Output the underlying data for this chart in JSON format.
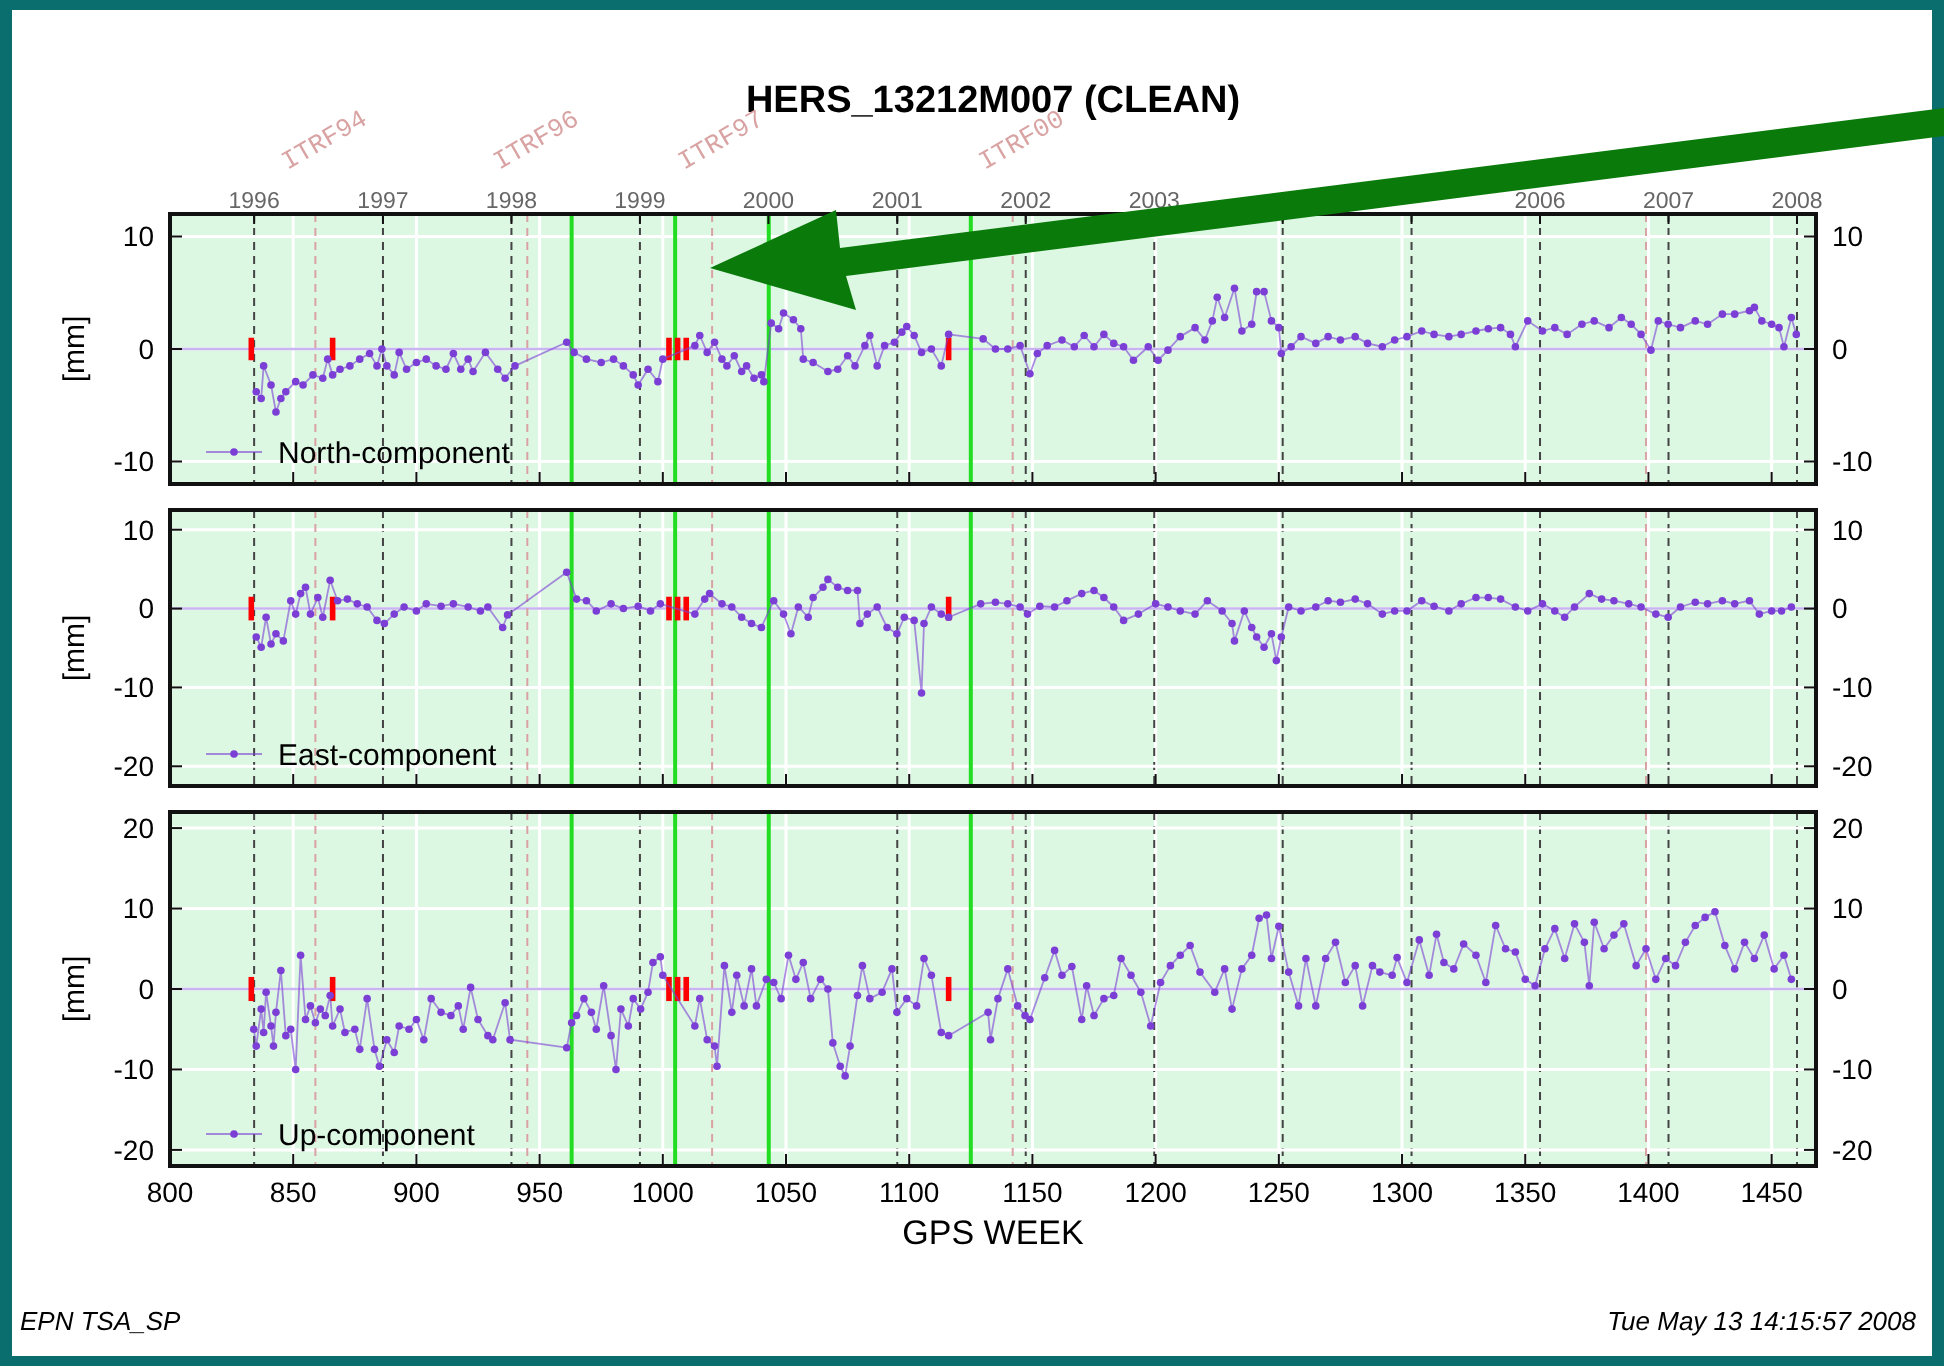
{
  "chart_data": [
    {
      "type": "line",
      "title": "HERS_13212M007 (CLEAN)",
      "ylabel": "[mm]",
      "xlim": [
        800,
        1468
      ],
      "xticks": [
        800,
        850,
        900,
        950,
        1000,
        1050,
        1100,
        1150,
        1200,
        1250,
        1300,
        1350,
        1400,
        1450
      ],
      "ylim": [
        -12,
        12
      ],
      "yticks": [
        -10,
        0,
        10
      ],
      "y2lim": [
        -12,
        12
      ],
      "y2ticks": [
        -10,
        0,
        10
      ],
      "x2lim": [
        "1995-05-07",
        "2008-02-24"
      ],
      "x2ticks": [
        "1996",
        "1997",
        "1998",
        "1999",
        "2000",
        "2001",
        "2002",
        "2003",
        {
          "value": "2004",
          "label": null
        },
        {
          "value": "2005",
          "label": null
        },
        "2006",
        "2007",
        "2008"
      ],
      "tick_labels": "y",
      "grid": true,
      "legend": "bottom left",
      "marker": "circle",
      "ref_lines": [
        {
          "axis": "y",
          "value": 0,
          "color": "#c8b4f0",
          "line_style": "solid"
        },
        {
          "axis": "x",
          "value": 859,
          "label": "ITRF94",
          "color": "#d9a3a3",
          "line_style": "dashed"
        },
        {
          "axis": "x",
          "value": 945,
          "label": "ITRF96",
          "color": "#d9a3a3",
          "line_style": "dashed"
        },
        {
          "axis": "x",
          "value": 1020,
          "label": "ITRF97",
          "color": "#d9a3a3",
          "line_style": "dashed"
        },
        {
          "axis": "x",
          "value": 1142,
          "label": "ITRF00",
          "color": "#d9a3a3",
          "line_style": "dashed"
        },
        {
          "axis": "x",
          "value": 1399,
          "color": "#d9a3a3",
          "line_style": "dashed"
        },
        {
          "axis": "x",
          "value": 963,
          "color": "#22dd22",
          "line_style": "solid"
        },
        {
          "axis": "x",
          "value": 1005,
          "color": "#22dd22",
          "line_style": "solid"
        },
        {
          "axis": "x",
          "value": 1043,
          "color": "#22dd22",
          "line_style": "solid"
        },
        {
          "axis": "x",
          "value": 1125,
          "color": "#22dd22",
          "line_style": "solid"
        }
      ],
      "series": [
        {
          "type": "bar",
          "color": "#ff0000",
          "x": [
            833,
            866,
            1002.5,
            1006,
            1009.5,
            1116
          ],
          "base": [
            -1,
            -1,
            -1,
            -1,
            -1,
            -1
          ],
          "values": [
            2,
            2,
            2,
            2,
            2,
            2
          ]
        },
        {
          "name": "North-component",
          "color": "#7b3fd6",
          "x": [
            835,
            837,
            838,
            841,
            843,
            845,
            847,
            851,
            854,
            858,
            862,
            864,
            866,
            869,
            873,
            877,
            881,
            884,
            886,
            888,
            891,
            893,
            896,
            900,
            904,
            908,
            912,
            915,
            918,
            921,
            923,
            928,
            933,
            936,
            940,
            961,
            964,
            969,
            975,
            980,
            984,
            988,
            990,
            994,
            998,
            1000,
            1013,
            1015,
            1018,
            1021,
            1024,
            1026,
            1029,
            1032,
            1034,
            1037,
            1040,
            1041,
            1044,
            1047,
            1049,
            1053,
            1056,
            1057,
            1061,
            1067,
            1071,
            1075,
            1078,
            1082,
            1084,
            1087,
            1090,
            1094,
            1097,
            1099,
            1102,
            1105,
            1109,
            1113,
            1116,
            1130,
            1135,
            1140,
            1145,
            1149,
            1152,
            1156,
            1162,
            1167,
            1171,
            1175,
            1179,
            1183,
            1187,
            1191,
            1197,
            1201,
            1205,
            1210,
            1216,
            1220,
            1223,
            1225,
            1228,
            1232,
            1235,
            1239,
            1241,
            1244,
            1247,
            1250,
            1251,
            1255,
            1259,
            1265,
            1270,
            1275,
            1281,
            1286,
            1292,
            1297,
            1302,
            1308,
            1313,
            1319,
            1324,
            1330,
            1335,
            1340,
            1344,
            1346,
            1351,
            1357,
            1362,
            1367,
            1373,
            1378,
            1384,
            1389,
            1393,
            1397,
            1401,
            1404,
            1408,
            1413,
            1419,
            1424,
            1430,
            1435,
            1441,
            1443,
            1446,
            1450,
            1453,
            1455,
            1458,
            1460
          ],
          "values": [
            -3.8,
            -4.4,
            -1.5,
            -3.2,
            -5.6,
            -4.4,
            -3.8,
            -2.9,
            -3.2,
            -2.3,
            -2.6,
            -0.9,
            -2.3,
            -1.8,
            -1.5,
            -0.9,
            -0.4,
            -1.5,
            0,
            -1.5,
            -2.3,
            -0.3,
            -1.8,
            -1.2,
            -0.9,
            -1.5,
            -1.8,
            -0.4,
            -1.8,
            -0.9,
            -2.0,
            -0.3,
            -1.8,
            -2.6,
            -1.5,
            0.6,
            -0.3,
            -0.9,
            -1.2,
            -0.9,
            -1.5,
            -2.3,
            -3.2,
            -1.8,
            -2.9,
            -0.9,
            0.3,
            1.2,
            -0.3,
            0.6,
            -0.9,
            -1.5,
            -0.6,
            -2.0,
            -1.5,
            -2.6,
            -2.3,
            -2.9,
            2.3,
            1.8,
            3.2,
            2.6,
            1.8,
            -0.9,
            -1.2,
            -2.0,
            -1.8,
            -0.6,
            -1.5,
            0.3,
            1.2,
            -1.5,
            0.3,
            0.6,
            1.5,
            2.0,
            1.2,
            -0.3,
            0,
            -1.5,
            1.3,
            0.9,
            0,
            0,
            0.3,
            -2.2,
            -0.4,
            0.3,
            0.8,
            0.2,
            1.2,
            0.2,
            1.3,
            0.5,
            0.2,
            -1.0,
            0.2,
            -1.0,
            -0.1,
            1.1,
            1.9,
            0.8,
            2.5,
            4.6,
            2.8,
            5.4,
            1.6,
            2.2,
            5.1,
            5.1,
            2.5,
            1.9,
            -0.4,
            0.2,
            1.1,
            0.5,
            1.1,
            0.8,
            1.1,
            0.5,
            0.2,
            0.8,
            1.1,
            1.6,
            1.3,
            1.1,
            1.3,
            1.6,
            1.8,
            1.9,
            1.3,
            0.2,
            2.5,
            1.6,
            1.9,
            1.3,
            2.2,
            2.5,
            1.9,
            2.8,
            2.2,
            1.3,
            -0.1,
            2.5,
            2.2,
            1.9,
            2.5,
            2.2,
            3.1,
            3.1,
            3.4,
            3.7,
            2.5,
            2.2,
            1.9,
            0.2,
            2.8,
            1.3
          ]
        }
      ]
    },
    {
      "type": "line",
      "ylabel": "[mm]",
      "xlim": [
        800,
        1468
      ],
      "xticks": [
        800,
        850,
        900,
        950,
        1000,
        1050,
        1100,
        1150,
        1200,
        1250,
        1300,
        1350,
        1400,
        1450
      ],
      "ylim": [
        -22.5,
        12.5
      ],
      "yticks": [
        -20,
        -10,
        0,
        10
      ],
      "y2lim": [
        -22.5,
        12.5
      ],
      "y2ticks": [
        -20,
        -10,
        0,
        10
      ],
      "tick_labels": "y",
      "grid": true,
      "legend": "bottom left",
      "marker": "circle",
      "ref_lines": [
        {
          "axis": "y",
          "value": 0,
          "color": "#c8b4f0",
          "line_style": "solid"
        },
        {
          "axis": "x",
          "value": 859,
          "color": "#d9a3a3",
          "line_style": "dashed"
        },
        {
          "axis": "x",
          "value": 945,
          "color": "#d9a3a3",
          "line_style": "dashed"
        },
        {
          "axis": "x",
          "value": 1020,
          "color": "#d9a3a3",
          "line_style": "dashed"
        },
        {
          "axis": "x",
          "value": 1142,
          "color": "#d9a3a3",
          "line_style": "dashed"
        },
        {
          "axis": "x",
          "value": 1399,
          "color": "#d9a3a3",
          "line_style": "dashed"
        },
        {
          "axis": "x",
          "value": 963,
          "color": "#22dd22",
          "line_style": "solid"
        },
        {
          "axis": "x",
          "value": 1005,
          "color": "#22dd22",
          "line_style": "solid"
        },
        {
          "axis": "x",
          "value": 1043,
          "color": "#22dd22",
          "line_style": "solid"
        },
        {
          "axis": "x",
          "value": 1125,
          "color": "#22dd22",
          "line_style": "solid"
        }
      ],
      "series": [
        {
          "type": "bar",
          "color": "#ff0000",
          "x": [
            833,
            866,
            1002.5,
            1006,
            1009.5,
            1116
          ],
          "base": [
            -1.5,
            -1.5,
            -1.5,
            -1.5,
            -1.5,
            -1.5
          ],
          "values": [
            3,
            3,
            3,
            3,
            3,
            3
          ]
        },
        {
          "name": "East-component",
          "color": "#7b3fd6",
          "x": [
            835,
            837,
            839,
            841,
            843,
            846,
            849,
            851,
            853,
            855,
            857,
            860,
            862,
            865,
            868,
            872,
            876,
            880,
            884,
            887,
            891,
            895,
            900,
            904,
            910,
            915,
            921,
            926,
            929,
            935,
            937,
            961,
            965,
            969,
            973,
            979,
            984,
            990,
            995,
            999,
            1013,
            1017,
            1019,
            1024,
            1028,
            1032,
            1036,
            1040,
            1045,
            1049,
            1052,
            1055,
            1059,
            1061,
            1065,
            1067,
            1071,
            1075,
            1079,
            1080,
            1083,
            1087,
            1091,
            1095,
            1098,
            1102,
            1105,
            1106,
            1109,
            1113,
            1116,
            1129,
            1135,
            1140,
            1145,
            1148,
            1153,
            1159,
            1164,
            1170,
            1175,
            1179,
            1183,
            1187,
            1193,
            1200,
            1205,
            1210,
            1216,
            1221,
            1227,
            1231,
            1232,
            1236,
            1239,
            1241,
            1244,
            1247,
            1249,
            1251,
            1254,
            1259,
            1265,
            1270,
            1275,
            1281,
            1286,
            1292,
            1297,
            1302,
            1308,
            1313,
            1319,
            1324,
            1330,
            1335,
            1340,
            1346,
            1351,
            1357,
            1362,
            1366,
            1370,
            1376,
            1381,
            1386,
            1392,
            1397,
            1403,
            1408,
            1413,
            1419,
            1424,
            1430,
            1435,
            1441,
            1445,
            1450,
            1454,
            1458
          ],
          "values": [
            -3.6,
            -4.9,
            -1.1,
            -4.5,
            -3.2,
            -4.1,
            1.0,
            -0.7,
            1.9,
            2.7,
            -0.7,
            1.4,
            -1.1,
            3.6,
            1.0,
            1.2,
            0.6,
            0.2,
            -1.5,
            -1.9,
            -0.7,
            0.2,
            -0.3,
            0.6,
            0.3,
            0.6,
            0.2,
            -0.3,
            0.2,
            -2.4,
            -0.8,
            4.6,
            1.2,
            1.0,
            -0.3,
            0.6,
            0,
            0.3,
            -0.3,
            0.6,
            -0.7,
            1.2,
            1.9,
            0.6,
            0.2,
            -1.1,
            -1.9,
            -2.4,
            1.0,
            -0.7,
            -3.2,
            0.2,
            -1.1,
            1.4,
            2.7,
            3.7,
            2.7,
            2.3,
            2.3,
            -1.9,
            -0.7,
            0.2,
            -2.4,
            -3.2,
            -1.1,
            -1.5,
            -10.7,
            -1.9,
            0.2,
            -0.7,
            -1.1,
            0.6,
            0.8,
            0.6,
            0.2,
            -0.7,
            0.3,
            0.2,
            1.0,
            1.9,
            2.3,
            1.4,
            0.2,
            -1.5,
            -0.7,
            0.6,
            0.2,
            -0.3,
            -0.7,
            1.0,
            -0.3,
            -1.9,
            -4.1,
            -0.3,
            -2.4,
            -3.6,
            -4.9,
            -3.2,
            -6.6,
            -3.6,
            0.2,
            -0.3,
            0.2,
            1.0,
            0.8,
            1.2,
            0.6,
            -0.7,
            -0.3,
            -0.3,
            1.0,
            0.3,
            -0.3,
            0.6,
            1.4,
            1.4,
            1.2,
            0.2,
            -0.3,
            0.6,
            -0.3,
            -1.1,
            0.2,
            1.9,
            1.2,
            1.0,
            0.6,
            0.2,
            -0.7,
            -1.1,
            0.2,
            0.8,
            0.6,
            1.0,
            0.6,
            1.0,
            -0.7,
            -0.3,
            -0.3,
            0.2
          ]
        }
      ]
    },
    {
      "type": "line",
      "ylabel": "[mm]",
      "xlabel": "GPS WEEK",
      "xlim": [
        800,
        1468
      ],
      "xticks": [
        800,
        850,
        900,
        950,
        1000,
        1050,
        1100,
        1150,
        1200,
        1250,
        1300,
        1350,
        1400,
        1450
      ],
      "ylim": [
        -22,
        22
      ],
      "yticks": [
        -20,
        -10,
        0,
        10,
        20
      ],
      "y2lim": [
        -22,
        22
      ],
      "y2ticks": [
        -20,
        -10,
        0,
        10,
        20
      ],
      "grid": true,
      "legend": "bottom left",
      "marker": "circle",
      "annotations": [
        "EPN TSA_SP",
        "Tue May 13 14:15:57 2008"
      ],
      "ref_lines": [
        {
          "axis": "y",
          "value": 0,
          "color": "#c8b4f0",
          "line_style": "solid"
        },
        {
          "axis": "x",
          "value": 859,
          "color": "#d9a3a3",
          "line_style": "dashed"
        },
        {
          "axis": "x",
          "value": 945,
          "color": "#d9a3a3",
          "line_style": "dashed"
        },
        {
          "axis": "x",
          "value": 1020,
          "color": "#d9a3a3",
          "line_style": "dashed"
        },
        {
          "axis": "x",
          "value": 1142,
          "color": "#d9a3a3",
          "line_style": "dashed"
        },
        {
          "axis": "x",
          "value": 1399,
          "color": "#d9a3a3",
          "line_style": "dashed"
        },
        {
          "axis": "x",
          "value": 963,
          "color": "#22dd22",
          "line_style": "solid"
        },
        {
          "axis": "x",
          "value": 1005,
          "color": "#22dd22",
          "line_style": "solid"
        },
        {
          "axis": "x",
          "value": 1043,
          "color": "#22dd22",
          "line_style": "solid"
        },
        {
          "axis": "x",
          "value": 1125,
          "color": "#22dd22",
          "line_style": "solid"
        }
      ],
      "series": [
        {
          "type": "bar",
          "color": "#ff0000",
          "x": [
            833,
            866,
            1002.5,
            1006,
            1009.5,
            1116
          ],
          "base": [
            -1.5,
            -1.5,
            -1.5,
            -1.5,
            -1.5,
            -1.5
          ],
          "values": [
            3,
            3,
            3,
            3,
            3,
            3
          ]
        },
        {
          "name": "Up-component",
          "color": "#7b3fd6",
          "x": [
            834,
            835,
            837,
            838,
            839,
            841,
            842,
            843,
            845,
            847,
            849,
            851,
            853,
            855,
            857,
            859,
            861,
            863,
            865,
            866,
            869,
            871,
            875,
            877,
            880,
            883,
            885,
            888,
            891,
            893,
            897,
            900,
            903,
            906,
            910,
            914,
            917,
            919,
            922,
            925,
            929,
            931,
            936,
            938,
            961,
            963,
            965,
            968,
            971,
            973,
            976,
            979,
            981,
            983,
            986,
            988,
            991,
            994,
            996,
            999,
            1000,
            1013,
            1015,
            1018,
            1021,
            1022,
            1025,
            1028,
            1030,
            1033,
            1036,
            1038,
            1042,
            1045,
            1048,
            1051,
            1054,
            1057,
            1060,
            1064,
            1067,
            1069,
            1072,
            1074,
            1076,
            1079,
            1081,
            1084,
            1089,
            1093,
            1095,
            1099,
            1103,
            1106,
            1109,
            1113,
            1116,
            1132,
            1133,
            1136,
            1140,
            1144,
            1147,
            1149,
            1155,
            1159,
            1162,
            1166,
            1170,
            1172,
            1175,
            1179,
            1183,
            1186,
            1190,
            1194,
            1198,
            1202,
            1206,
            1210,
            1214,
            1218,
            1224,
            1228,
            1231,
            1235,
            1239,
            1242,
            1245,
            1247,
            1250,
            1254,
            1258,
            1261,
            1265,
            1269,
            1273,
            1277,
            1281,
            1284,
            1288,
            1291,
            1296,
            1298,
            1302,
            1307,
            1311,
            1314,
            1317,
            1321,
            1325,
            1330,
            1334,
            1338,
            1342,
            1346,
            1350,
            1354,
            1358,
            1362,
            1366,
            1370,
            1374,
            1376,
            1378,
            1382,
            1386,
            1390,
            1395,
            1399,
            1403,
            1407,
            1411,
            1415,
            1419,
            1423,
            1427,
            1431,
            1435,
            1439,
            1443,
            1447,
            1451,
            1455,
            1458
          ],
          "values": [
            -5.0,
            -7.1,
            -2.5,
            -5.4,
            -0.4,
            -4.6,
            -7.1,
            -2.9,
            2.3,
            -5.8,
            -5.0,
            -10.0,
            4.2,
            -3.8,
            -2.1,
            -4.2,
            -2.5,
            -3.3,
            -0.8,
            -4.6,
            -2.5,
            -5.4,
            -5.0,
            -7.5,
            -1.2,
            -7.5,
            -9.6,
            -6.3,
            -7.9,
            -4.6,
            -5.0,
            -3.8,
            -6.3,
            -1.2,
            -2.9,
            -3.3,
            -2.1,
            -5.0,
            0.2,
            -3.8,
            -5.8,
            -6.3,
            -1.7,
            -6.3,
            -7.3,
            -4.2,
            -3.3,
            -1.2,
            -2.9,
            -5.0,
            0.4,
            -5.8,
            -10.0,
            -2.5,
            -4.6,
            -1.2,
            -2.5,
            -0.4,
            3.3,
            4.0,
            1.7,
            -4.6,
            -1.2,
            -6.3,
            -7.1,
            -9.6,
            2.9,
            -2.9,
            1.7,
            -2.1,
            2.5,
            -2.1,
            1.2,
            0.8,
            -1.2,
            4.2,
            1.2,
            3.3,
            -1.2,
            1.2,
            0,
            -6.7,
            -9.6,
            -10.8,
            -7.1,
            -0.8,
            2.9,
            -1.2,
            -0.4,
            2.5,
            -2.9,
            -1.2,
            -2.1,
            3.8,
            1.7,
            -5.4,
            -5.8,
            -2.9,
            -6.3,
            -1.2,
            2.5,
            -2.1,
            -3.3,
            -3.8,
            1.4,
            4.8,
            1.7,
            2.8,
            -3.8,
            0.4,
            -3.3,
            -1.2,
            -0.8,
            3.8,
            1.7,
            -0.4,
            -4.6,
            0.8,
            2.9,
            4.2,
            5.4,
            2.1,
            -0.4,
            2.5,
            -2.5,
            2.5,
            4.2,
            8.8,
            9.2,
            3.8,
            7.8,
            2.1,
            -2.1,
            3.8,
            -2.1,
            3.8,
            5.8,
            0.8,
            2.9,
            -2.1,
            2.9,
            2.1,
            1.7,
            3.9,
            0.8,
            6.1,
            1.7,
            6.8,
            3.3,
            2.5,
            5.6,
            4.2,
            0.8,
            7.9,
            5.0,
            4.6,
            1.2,
            0.4,
            5.0,
            7.5,
            3.8,
            8.1,
            5.8,
            0.4,
            8.3,
            5.0,
            6.7,
            8.1,
            2.9,
            5.0,
            1.2,
            3.8,
            2.9,
            5.8,
            7.9,
            8.9,
            9.6,
            5.4,
            2.5,
            5.8,
            3.8,
            6.7,
            2.5,
            4.2,
            1.2
          ]
        }
      ]
    }
  ]
}
